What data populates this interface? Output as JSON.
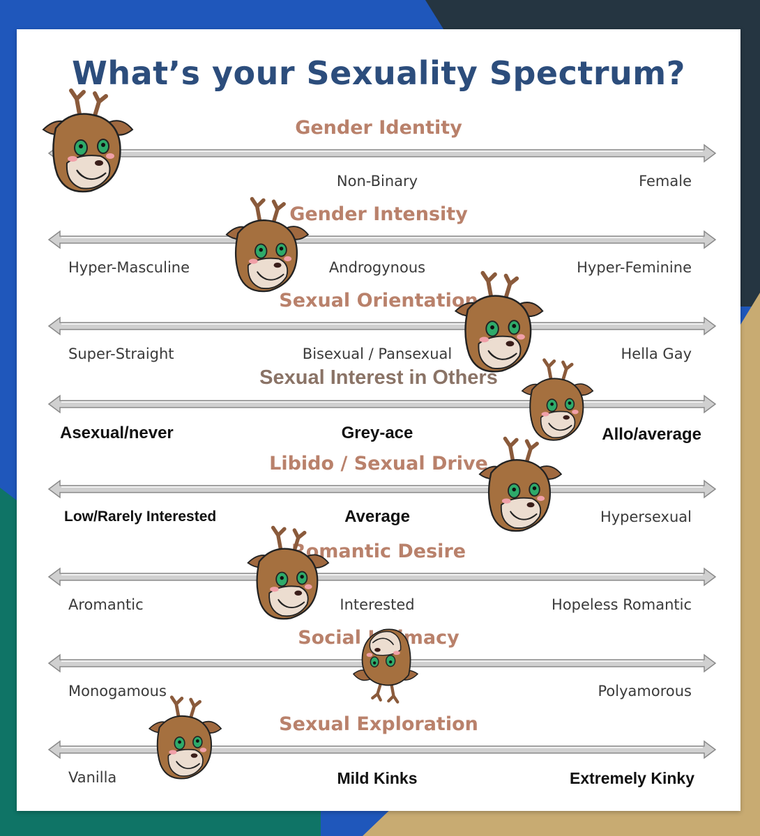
{
  "title": "What’s your Sexuality Spectrum?",
  "colors": {
    "title": "#2c4d7c",
    "row_title": "#b9816b",
    "arrow": "#c8c8c8"
  },
  "rows": [
    {
      "title": "Gender Identity",
      "left": "",
      "middle": "Non-Binary",
      "right": "Female"
    },
    {
      "title": "Gender Intensity",
      "left": "Hyper-Masculine",
      "middle": "Androgynous",
      "right": "Hyper-Feminine"
    },
    {
      "title": "Sexual Orientation",
      "left": "Super-Straight",
      "middle": "Bisexual / Pansexual",
      "right": "Hella Gay"
    },
    {
      "title": "Sexual Interest in Others",
      "left": "Asexual/never",
      "middle": "Grey-ace",
      "right": "Allo/average"
    },
    {
      "title": "Libido / Sexual Drive",
      "left": "Low/Rarely Interested",
      "middle": "Average",
      "right": "Hypersexual"
    },
    {
      "title": "Romantic Desire",
      "left": "Aromantic",
      "middle": "Interested",
      "right": "Hopeless Romantic"
    },
    {
      "title": "Social Intimacy",
      "left": "Monogamous",
      "middle": "",
      "right": "Polyamorous"
    },
    {
      "title": "Sexual Exploration",
      "left": "Vanilla",
      "middle": "Mild Kinks",
      "right": "Extremely Kinky"
    }
  ],
  "markers": [
    {
      "row": 0,
      "icon": "deer-head-sticker-icon"
    },
    {
      "row": 1,
      "icon": "deer-head-sticker-icon"
    },
    {
      "row": 2,
      "icon": "deer-head-sticker-icon"
    },
    {
      "row": 3,
      "icon": "deer-head-sticker-icon"
    },
    {
      "row": 4,
      "icon": "deer-head-sticker-icon"
    },
    {
      "row": 5,
      "icon": "deer-head-sticker-icon"
    },
    {
      "row": 6,
      "icon": "deer-head-sticker-icon"
    },
    {
      "row": 7,
      "icon": "deer-head-sticker-icon"
    }
  ]
}
